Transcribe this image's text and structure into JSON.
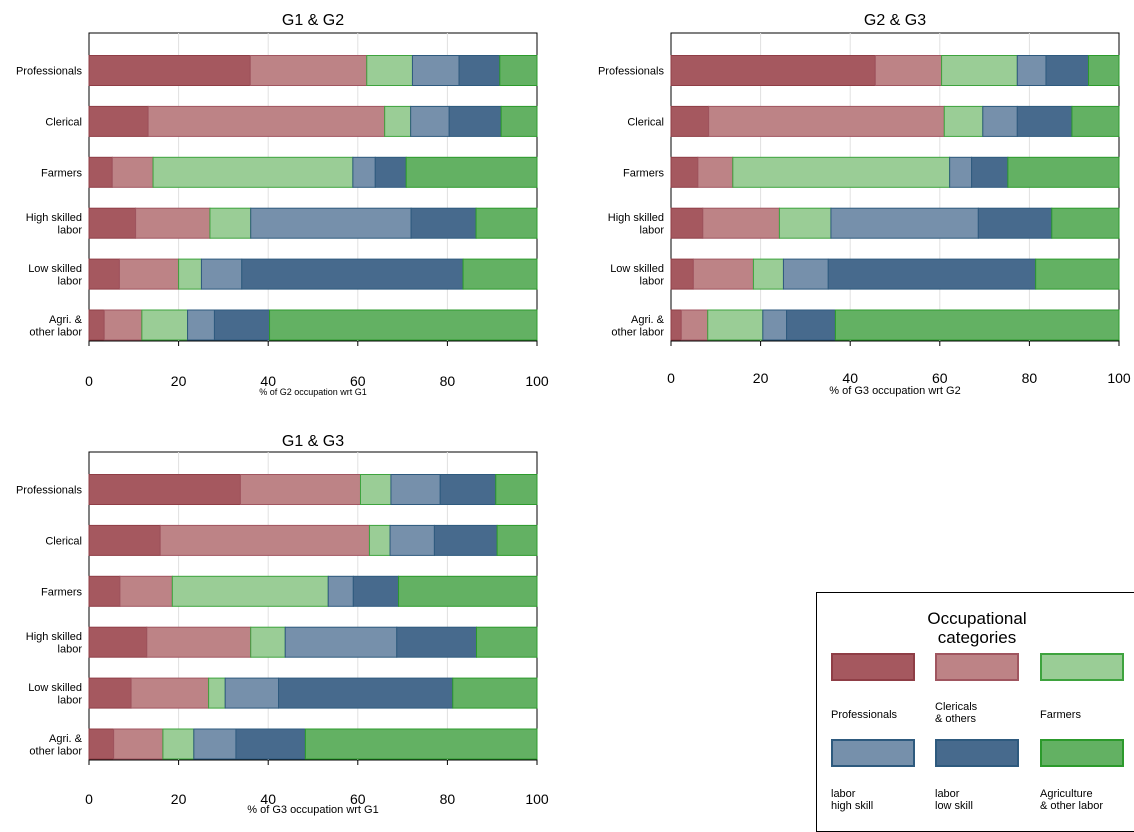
{
  "categories": [
    "Professionals",
    "Clerical",
    "Farmers",
    "High skilled\nlabor",
    "Low skilled\nlabor",
    "Agri. &\nother labor"
  ],
  "series_names": [
    "Professionals",
    "Clericals & others",
    "Farmers",
    "labor high skill",
    "labor low skill",
    "Agriculture & other labor"
  ],
  "colors": {
    "fill": [
      "#a5585f",
      "#bd8386",
      "#9acd96",
      "#7690ab",
      "#476a8d",
      "#63b163"
    ],
    "stroke": [
      "#8f3e46",
      "#a05660",
      "#3ea33e",
      "#2e5a7e",
      "#2e5a7e",
      "#2c9a2c"
    ]
  },
  "chart_data": [
    {
      "type": "bar",
      "stacked": true,
      "orientation": "horizontal",
      "title": "G1 & G2",
      "xlabel": "% of G2 occupation wrt G1",
      "xlim": [
        0,
        100
      ],
      "xticks": [
        0,
        20,
        40,
        60,
        80,
        100
      ],
      "categories": [
        "Professionals",
        "Clerical",
        "Farmers",
        "High skilled labor",
        "Low skilled labor",
        "Agri. & other labor"
      ],
      "series": [
        {
          "name": "Professionals",
          "values": [
            36,
            13.2,
            5.2,
            10.4,
            6.8,
            3.4
          ]
        },
        {
          "name": "Clericals & others",
          "values": [
            26,
            52.8,
            9.1,
            16.6,
            13.2,
            8.4
          ]
        },
        {
          "name": "Farmers",
          "values": [
            10.2,
            5.8,
            44.6,
            9.1,
            5.1,
            10.2
          ]
        },
        {
          "name": "labor high skill",
          "values": [
            10.4,
            8.6,
            5,
            35.8,
            9,
            6
          ]
        },
        {
          "name": "labor low skill",
          "values": [
            9.1,
            11.6,
            6.9,
            14.5,
            49.4,
            12.3
          ]
        },
        {
          "name": "Agriculture & other labor",
          "values": [
            8.3,
            8,
            29.2,
            13.6,
            16.5,
            59.7
          ]
        }
      ]
    },
    {
      "type": "bar",
      "stacked": true,
      "orientation": "horizontal",
      "title": "G2 & G3",
      "xlabel": "% of G3 occupation wrt G2",
      "xlim": [
        0,
        100
      ],
      "xticks": [
        0,
        20,
        40,
        60,
        80,
        100
      ],
      "categories": [
        "Professionals",
        "Clerical",
        "Farmers",
        "High skilled labor",
        "Low skilled labor",
        "Agri. & other labor"
      ],
      "series": [
        {
          "name": "Professionals",
          "values": [
            45.6,
            8.4,
            6,
            7.1,
            5,
            2.3
          ]
        },
        {
          "name": "Clericals & others",
          "values": [
            14.8,
            52.6,
            7.8,
            17.1,
            13.4,
            5.9
          ]
        },
        {
          "name": "Farmers",
          "values": [
            16.9,
            8.6,
            48.4,
            11.5,
            6.7,
            12.3
          ]
        },
        {
          "name": "labor high skill",
          "values": [
            6.4,
            7.7,
            4.9,
            32.9,
            10,
            5.3
          ]
        },
        {
          "name": "labor low skill",
          "values": [
            9.5,
            12.2,
            8.1,
            16.4,
            46.3,
            10.9
          ]
        },
        {
          "name": "Agriculture & other labor",
          "values": [
            6.8,
            10.5,
            24.8,
            15,
            18.6,
            63.3
          ]
        }
      ]
    },
    {
      "type": "bar",
      "stacked": true,
      "orientation": "horizontal",
      "title": "G1 & G3",
      "xlabel": "% of G3 occupation wrt G1",
      "xlim": [
        0,
        100
      ],
      "xticks": [
        0,
        20,
        40,
        60,
        80,
        100
      ],
      "categories": [
        "Professionals",
        "Clerical",
        "Farmers",
        "High skilled labor",
        "Low skilled labor",
        "Agri. & other labor"
      ],
      "series": [
        {
          "name": "Professionals",
          "values": [
            33.8,
            15.9,
            6.9,
            12.9,
            9.4,
            5.5
          ]
        },
        {
          "name": "Clericals & others",
          "values": [
            26.8,
            46.7,
            11.7,
            23.2,
            17.3,
            11
          ]
        },
        {
          "name": "Farmers",
          "values": [
            6.8,
            4.6,
            34.8,
            7.7,
            3.7,
            6.9
          ]
        },
        {
          "name": "labor high skill",
          "values": [
            11,
            9.9,
            5.6,
            24.9,
            11.9,
            9.4
          ]
        },
        {
          "name": "labor low skill",
          "values": [
            12.4,
            14,
            10.1,
            17.8,
            38.9,
            15.5
          ]
        },
        {
          "name": "Agriculture & other labor",
          "values": [
            9.2,
            8.9,
            30.9,
            13.5,
            18.8,
            51.7
          ]
        }
      ]
    }
  ],
  "legend": {
    "title": "Occupational\ncategories",
    "labels": [
      "Professionals",
      "Clericals\n& others",
      "Farmers",
      "labor\nhigh skill",
      "labor\nlow skill",
      "Agriculture\n& other labor"
    ]
  }
}
